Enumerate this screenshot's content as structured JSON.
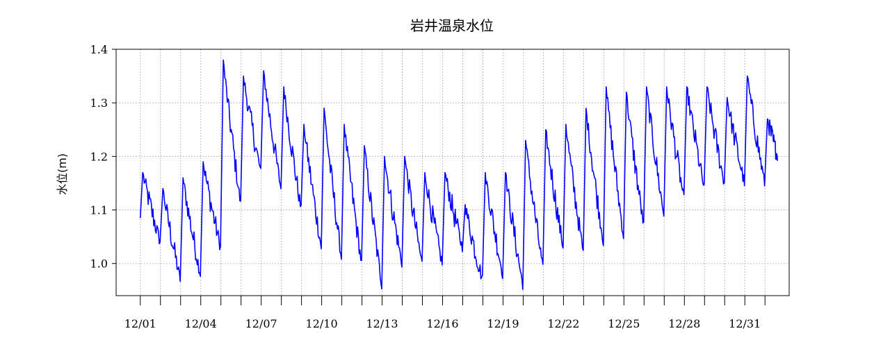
{
  "chart_data": {
    "type": "line",
    "title": "岩井温泉水位",
    "xlabel": "",
    "ylabel": "水位(m)",
    "ylim": [
      0.94,
      1.4
    ],
    "y_ticks": [
      1.0,
      1.1,
      1.2,
      1.3,
      1.4
    ],
    "y_tick_labels": [
      "1.0",
      "1.1",
      "1.2",
      "1.3",
      "1.4"
    ],
    "x_range_days": [
      -1.2,
      32.2
    ],
    "x_tick_labels": [
      "12/01",
      "12/04",
      "12/07",
      "12/10",
      "12/13",
      "12/16",
      "12/19",
      "12/22",
      "12/25",
      "12/28",
      "12/31"
    ],
    "grid": true,
    "line_color": "#0000ff",
    "series": [
      {
        "x": [
          "12/01",
          "12/02",
          "12/03",
          "12/04",
          "12/05",
          "12/06",
          "12/07",
          "12/08",
          "12/09",
          "12/10",
          "12/11",
          "12/12",
          "12/13",
          "12/14",
          "12/15",
          "12/16",
          "12/17",
          "12/18",
          "12/19",
          "12/20",
          "12/21",
          "12/22",
          "12/23",
          "12/24",
          "12/25",
          "12/26",
          "12/27",
          "12/28",
          "12/29",
          "12/30",
          "12/31",
          "01/01"
        ],
        "peaks": [
          1.17,
          1.14,
          1.16,
          1.19,
          1.38,
          1.35,
          1.36,
          1.33,
          1.26,
          1.29,
          1.26,
          1.22,
          1.2,
          1.2,
          1.17,
          1.17,
          1.11,
          1.17,
          1.17,
          1.23,
          1.25,
          1.26,
          1.29,
          1.33,
          1.32,
          1.33,
          1.33,
          1.33,
          1.33,
          1.31,
          1.35,
          1.27
        ],
        "troughs": [
          1.04,
          0.97,
          0.98,
          1.03,
          1.11,
          1.17,
          1.14,
          1.1,
          1.03,
          1.01,
          1.0,
          0.96,
          1.0,
          1.0,
          1.0,
          1.03,
          0.97,
          0.98,
          0.96,
          0.99,
          1.03,
          1.02,
          1.04,
          1.05,
          1.07,
          1.09,
          1.12,
          1.14,
          1.15,
          1.15,
          1.15,
          1.2
        ]
      }
    ]
  }
}
